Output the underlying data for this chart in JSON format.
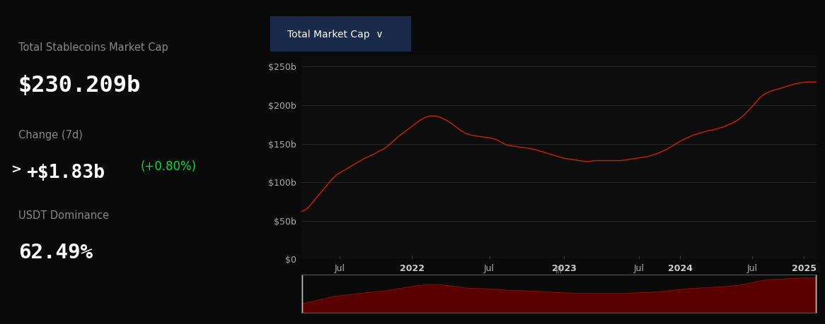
{
  "bg_color": "#0a0a0a",
  "chart_bg": "#0d0d0d",
  "title_label": "Total Stablecoins Market Cap",
  "title_value": "$230.209b",
  "change_label": "Change (7d)",
  "change_value": "+$1.83b",
  "change_pct": "(+0.80%)",
  "dominance_label": "USDT Dominance",
  "dominance_value": "62.49%",
  "label_color": "#888888",
  "value_color": "#ffffff",
  "change_pct_color": "#00dd44",
  "y_tick_labels": [
    "$0",
    "$50b",
    "$100b",
    "$150b",
    "$200b",
    "$250b"
  ],
  "y_tick_values": [
    0,
    50,
    100,
    150,
    200,
    250
  ],
  "x_tick_labels": [
    "Jul",
    "2022",
    "Jul",
    "2023",
    "Jul",
    "2024",
    "Jul",
    "2025"
  ],
  "x_tick_positions": [
    0.075,
    0.215,
    0.365,
    0.51,
    0.655,
    0.735,
    0.875,
    0.975
  ],
  "line_color": "#cc2200",
  "mini_fill_color": "#5a0000",
  "grid_color": "#2a2a2a",
  "nav_bar_color": "#3a3a3a",
  "nav_handle_color": "#888888",
  "data_x": [
    0.0,
    0.005,
    0.01,
    0.015,
    0.02,
    0.03,
    0.04,
    0.05,
    0.06,
    0.07,
    0.08,
    0.09,
    0.1,
    0.11,
    0.12,
    0.13,
    0.14,
    0.15,
    0.16,
    0.17,
    0.18,
    0.19,
    0.2,
    0.21,
    0.22,
    0.23,
    0.24,
    0.25,
    0.26,
    0.27,
    0.28,
    0.29,
    0.3,
    0.31,
    0.32,
    0.33,
    0.34,
    0.36,
    0.37,
    0.38,
    0.39,
    0.4,
    0.41,
    0.42,
    0.43,
    0.44,
    0.45,
    0.46,
    0.47,
    0.48,
    0.49,
    0.5,
    0.51,
    0.52,
    0.53,
    0.54,
    0.55,
    0.56,
    0.57,
    0.58,
    0.59,
    0.6,
    0.61,
    0.62,
    0.63,
    0.64,
    0.65,
    0.66,
    0.67,
    0.68,
    0.69,
    0.7,
    0.71,
    0.72,
    0.73,
    0.74,
    0.75,
    0.76,
    0.77,
    0.78,
    0.79,
    0.8,
    0.81,
    0.82,
    0.83,
    0.84,
    0.85,
    0.86,
    0.87,
    0.88,
    0.89,
    0.9,
    0.91,
    0.92,
    0.93,
    0.94,
    0.95,
    0.96,
    0.97,
    0.98,
    1.0
  ],
  "data_y": [
    62,
    63,
    65,
    68,
    72,
    80,
    88,
    96,
    104,
    110,
    114,
    118,
    122,
    126,
    130,
    133,
    136,
    140,
    143,
    148,
    154,
    160,
    165,
    170,
    175,
    180,
    184,
    186,
    186,
    184,
    181,
    177,
    172,
    167,
    163,
    161,
    160,
    158,
    157,
    155,
    151,
    148,
    147,
    146,
    145,
    144,
    143,
    141,
    139,
    137,
    135,
    133,
    131,
    130,
    129,
    128,
    127,
    127,
    128,
    128,
    128,
    128,
    128,
    128,
    129,
    130,
    131,
    132,
    133,
    135,
    137,
    140,
    143,
    147,
    151,
    155,
    158,
    161,
    163,
    165,
    167,
    168,
    170,
    172,
    175,
    178,
    182,
    188,
    195,
    202,
    210,
    215,
    218,
    220,
    222,
    224,
    226,
    228,
    229,
    230,
    230
  ],
  "ylim": [
    0,
    265
  ],
  "xlim": [
    0.0,
    1.0
  ],
  "dropdown_bg": "#1a2a4a",
  "dropdown_text": "Total Market Cap  ∨"
}
